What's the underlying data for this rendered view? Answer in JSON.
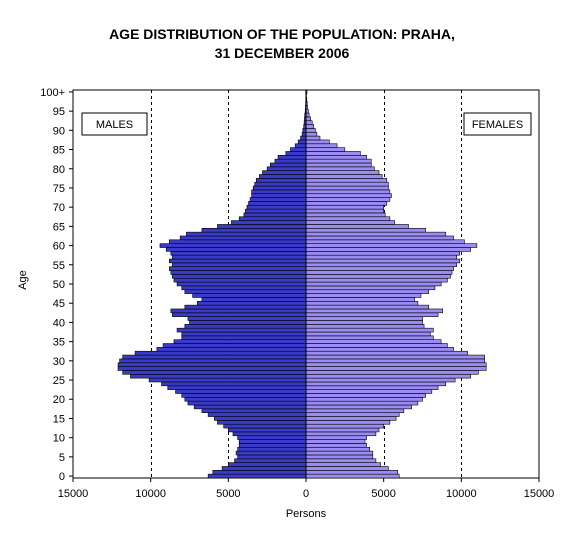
{
  "title": {
    "line1": "AGE DISTRIBUTION OF THE POPULATION: PRAHA,",
    "line2": "31 DECEMBER 2006"
  },
  "labels": {
    "males": "MALES",
    "females": "FEMALES",
    "xlabel": "Persons",
    "ylabel": "Age"
  },
  "colors": {
    "males": "#3a3ac8",
    "females": "#9a8cf2",
    "outline": "#000000"
  },
  "chart_data": {
    "type": "bar",
    "orientation": "horizontal-population-pyramid",
    "title": "AGE DISTRIBUTION OF THE POPULATION: PRAHA, 31 DECEMBER 2006",
    "xlabel": "Persons",
    "ylabel": "Age",
    "xlim": [
      -15000,
      15000
    ],
    "ylim": [
      0,
      100
    ],
    "x_ticks": [
      -15000,
      -10000,
      -5000,
      0,
      5000,
      10000,
      15000
    ],
    "x_tick_labels": [
      "15000",
      "10000",
      "5000",
      "0",
      "5000",
      "10000",
      "15000"
    ],
    "y_ticks": [
      0,
      5,
      10,
      15,
      20,
      25,
      30,
      35,
      40,
      45,
      50,
      55,
      60,
      65,
      70,
      75,
      80,
      85,
      90,
      95,
      100
    ],
    "y_tick_labels": [
      "0",
      "5",
      "10",
      "15",
      "20",
      "25",
      "30",
      "35",
      "40",
      "45",
      "50",
      "55",
      "60",
      "65",
      "70",
      "75",
      "80",
      "85",
      "90",
      "95",
      "100+"
    ],
    "gridlines_x": [
      -10000,
      -5000,
      5000,
      10000
    ],
    "grid": "dashed vertical",
    "categories": [
      "0",
      "1",
      "2",
      "3",
      "4",
      "5",
      "6",
      "7",
      "8",
      "9",
      "10",
      "11",
      "12",
      "13",
      "14",
      "15",
      "16",
      "17",
      "18",
      "19",
      "20",
      "21",
      "22",
      "23",
      "24",
      "25",
      "26",
      "27",
      "28",
      "29",
      "30",
      "31",
      "32",
      "33",
      "34",
      "35",
      "36",
      "37",
      "38",
      "39",
      "40",
      "41",
      "42",
      "43",
      "44",
      "45",
      "46",
      "47",
      "48",
      "49",
      "50",
      "51",
      "52",
      "53",
      "54",
      "55",
      "56",
      "57",
      "58",
      "59",
      "60",
      "61",
      "62",
      "63",
      "64",
      "65",
      "66",
      "67",
      "68",
      "69",
      "70",
      "71",
      "72",
      "73",
      "74",
      "75",
      "76",
      "77",
      "78",
      "79",
      "80",
      "81",
      "82",
      "83",
      "84",
      "85",
      "86",
      "87",
      "88",
      "89",
      "90",
      "91",
      "92",
      "93",
      "94",
      "95",
      "96",
      "97",
      "98",
      "99",
      "100+"
    ],
    "series": [
      {
        "name": "MALES",
        "values": [
          6300,
          6000,
          5400,
          5000,
          4600,
          4400,
          4500,
          4400,
          4300,
          4300,
          4400,
          4700,
          5000,
          5300,
          5700,
          5900,
          6300,
          6700,
          7200,
          7600,
          7800,
          8000,
          8400,
          8900,
          9300,
          10100,
          11300,
          11800,
          12100,
          12100,
          12000,
          11800,
          11000,
          9600,
          9200,
          8500,
          8000,
          8000,
          8300,
          7800,
          7500,
          7600,
          8600,
          8700,
          7800,
          7000,
          6700,
          7300,
          7800,
          8000,
          8300,
          8500,
          8600,
          8700,
          8800,
          8600,
          8800,
          8600,
          8700,
          9000,
          9400,
          8800,
          8100,
          7700,
          6700,
          5700,
          4800,
          4300,
          4000,
          3900,
          3800,
          3700,
          3600,
          3500,
          3500,
          3400,
          3300,
          3200,
          3000,
          2800,
          2500,
          2300,
          2000,
          1800,
          1300,
          1000,
          700,
          500,
          350,
          250,
          200,
          150,
          120,
          100,
          80,
          50,
          35,
          25,
          15,
          10,
          20
        ]
      },
      {
        "name": "FEMALES",
        "values": [
          6000,
          5900,
          5300,
          4800,
          4500,
          4300,
          4300,
          4100,
          3900,
          3800,
          3900,
          4500,
          4700,
          5000,
          5400,
          5800,
          6000,
          6300,
          6800,
          7200,
          7500,
          7700,
          8100,
          8500,
          9000,
          9600,
          10600,
          11100,
          11600,
          11600,
          11500,
          11500,
          10400,
          9500,
          9100,
          8700,
          8200,
          8000,
          8200,
          7600,
          7500,
          7500,
          8500,
          8800,
          7900,
          7200,
          7000,
          7400,
          7900,
          8300,
          8700,
          9100,
          9300,
          9400,
          9500,
          9700,
          9900,
          9700,
          9900,
          10600,
          11000,
          10200,
          9500,
          9000,
          7700,
          6600,
          5700,
          5400,
          5100,
          5000,
          5000,
          5200,
          5400,
          5500,
          5400,
          5300,
          5300,
          5200,
          4900,
          4700,
          4400,
          4200,
          4200,
          3900,
          3500,
          2500,
          2000,
          1500,
          900,
          700,
          600,
          500,
          400,
          300,
          200,
          150,
          100,
          80,
          50,
          30,
          60
        ]
      }
    ],
    "legend": "text boxes at top-left (MALES) and top-right (FEMALES)"
  }
}
